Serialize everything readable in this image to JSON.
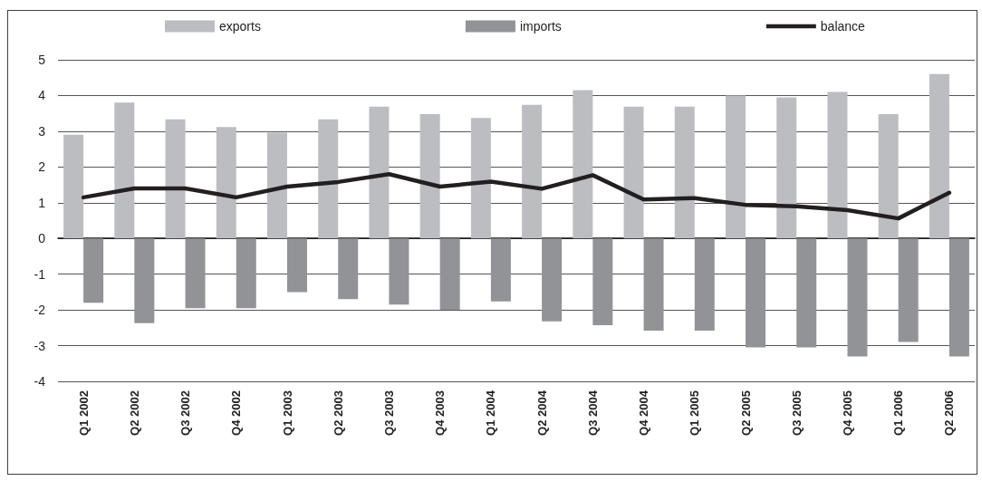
{
  "chart_data": {
    "type": "bar",
    "categories": [
      "Q1 2002",
      "Q2 2002",
      "Q3 2002",
      "Q4 2002",
      "Q1 2003",
      "Q2 2003",
      "Q3 2003",
      "Q4 2003",
      "Q1 2004",
      "Q2 2004",
      "Q3 2004",
      "Q4 2004",
      "Q1 2005",
      "Q2 2005",
      "Q3 2005",
      "Q4 2005",
      "Q1 2006",
      "Q2 2006"
    ],
    "series": [
      {
        "name": "exports",
        "color": "#bcbdc0",
        "values": [
          2.9,
          3.8,
          3.33,
          3.12,
          2.96,
          3.33,
          3.69,
          3.48,
          3.37,
          3.74,
          4.15,
          3.69,
          3.69,
          4.0,
          3.95,
          4.1,
          3.48,
          4.6
        ]
      },
      {
        "name": "imports",
        "color": "#929397",
        "values": [
          -1.8,
          -2.37,
          -1.95,
          -1.95,
          -1.5,
          -1.7,
          -1.85,
          -2.0,
          -1.76,
          -2.32,
          -2.43,
          -2.58,
          -2.58,
          -3.05,
          -3.05,
          -3.3,
          -2.9,
          -3.3
        ]
      },
      {
        "name": "balance",
        "type": "line",
        "color": "#231f20",
        "values": [
          1.15,
          1.4,
          1.4,
          1.15,
          1.45,
          1.58,
          1.8,
          1.45,
          1.59,
          1.39,
          1.77,
          1.09,
          1.13,
          0.94,
          0.9,
          0.79,
          0.56,
          1.28
        ]
      }
    ],
    "ylim": [
      -4,
      5
    ],
    "yticks": [
      -4,
      -3,
      -2,
      -1,
      0,
      1,
      2,
      3,
      4,
      5
    ],
    "grid": "y",
    "legend": "top",
    "marker": "none"
  }
}
